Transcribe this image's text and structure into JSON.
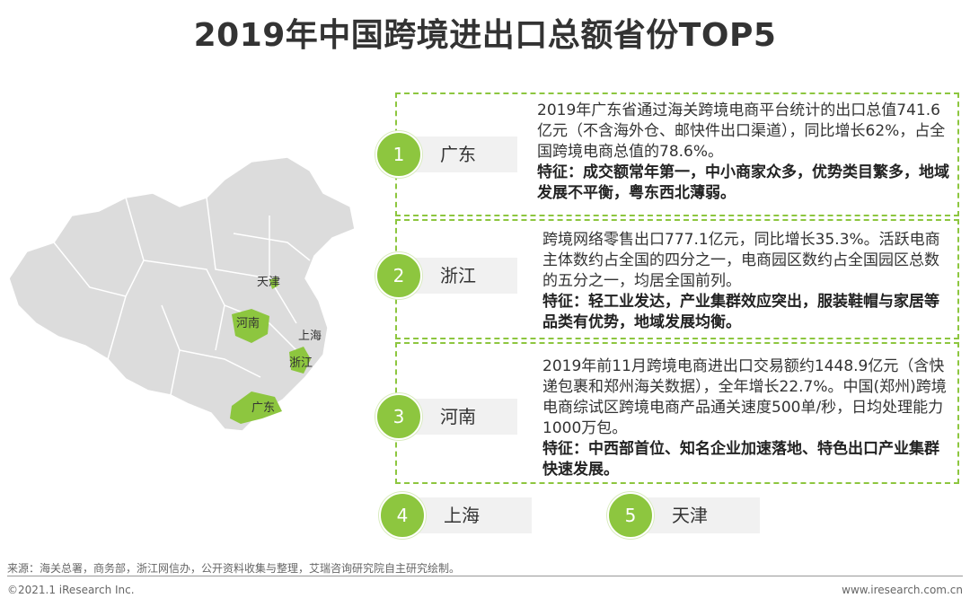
{
  "title": "2019年中国跨境进出口总额省份TOP5",
  "colors": {
    "accent": "#8dc63f",
    "map_base": "#dcdcdc",
    "label_bg": "#f1f1f1"
  },
  "map": {
    "labels": {
      "tianjin": "天津",
      "henan": "河南",
      "shanghai": "上海",
      "zhejiang": "浙江",
      "guangdong": "广东"
    }
  },
  "ranks": [
    {
      "number": "1",
      "name": "广东",
      "desc": "2019年广东省通过海关跨境电商平台统计的出口总值741.6亿元（不含海外仓、邮快件出口渠道），同比增长62%，占全国跨境电商总值的78.6%。",
      "feature": "特征：成交额常年第一，中小商家众多，优势类目繁多，地域发展不平衡，粤东西北薄弱。"
    },
    {
      "number": "2",
      "name": "浙江",
      "desc": "跨境网络零售出口777.1亿元，同比增长35.3%。活跃电商主体数约占全国的四分之一，电商园区数约占全国园区总数的五分之一，均居全国前列。",
      "feature": "特征：轻工业发达，产业集群效应突出，服装鞋帽与家居等品类有优势，地域发展均衡。"
    },
    {
      "number": "3",
      "name": "河南",
      "desc": "2019年前11月跨境电商进出口交易额约1448.9亿元（含快递包裹和郑州海关数据），全年增长22.7%。中国(郑州)跨境电商综试区跨境电商产品通关速度500单/秒，日均处理能力1000万包。",
      "feature": "特征：中西部首位、知名企业加速落地、特色出口产业集群快速发展。"
    },
    {
      "number": "4",
      "name": "上海"
    },
    {
      "number": "5",
      "name": "天津"
    }
  ],
  "source": "来源：海关总署，商务部，浙江网信办，公开资料收集与整理，艾瑞咨询研究院自主研究绘制。",
  "footer": {
    "copyright": "©2021.1 iResearch Inc.",
    "website": "www.iresearch.com.cn"
  }
}
